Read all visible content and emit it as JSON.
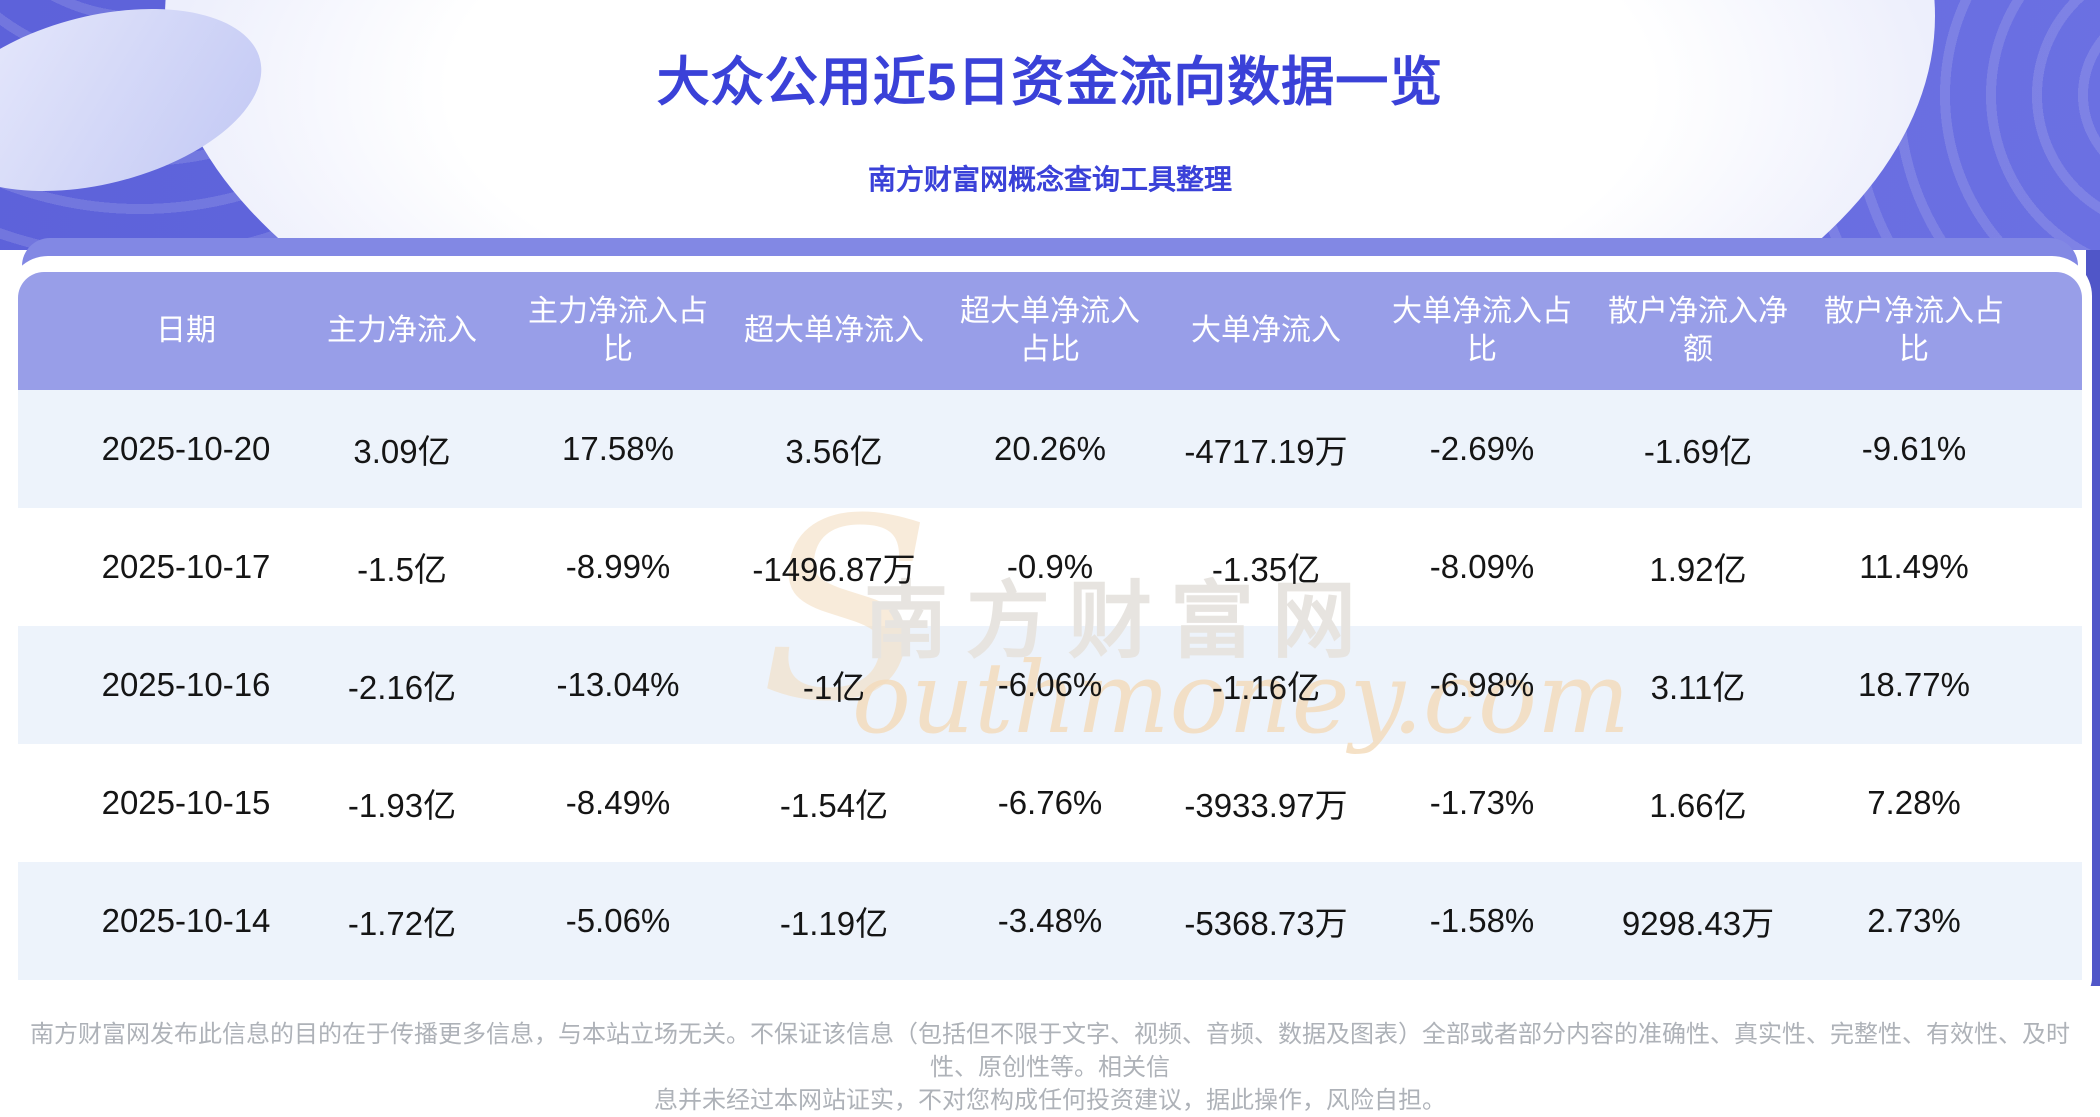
{
  "header": {
    "title": "大众公用近5日资金流向数据一览",
    "subtitle": "南方财富网概念查询工具整理"
  },
  "table": {
    "columns": [
      "日期",
      "主力净流入",
      "主力净流入占比",
      "超大单净流入",
      "超大单净流入占比",
      "大单净流入",
      "大单净流入占比",
      "散户净流入净额",
      "散户净流入占比"
    ],
    "rows": [
      [
        "2025-10-20",
        "3.09亿",
        "17.58%",
        "3.56亿",
        "20.26%",
        "-4717.19万",
        "-2.69%",
        "-1.69亿",
        "-9.61%"
      ],
      [
        "2025-10-17",
        "-1.5亿",
        "-8.99%",
        "-1496.87万",
        "-0.9%",
        "-1.35亿",
        "-8.09%",
        "1.92亿",
        "11.49%"
      ],
      [
        "2025-10-16",
        "-2.16亿",
        "-13.04%",
        "-1亿",
        "-6.06%",
        "-1.16亿",
        "-6.98%",
        "3.11亿",
        "18.77%"
      ],
      [
        "2025-10-15",
        "-1.93亿",
        "-8.49%",
        "-1.54亿",
        "-6.76%",
        "-3933.97万",
        "-1.73%",
        "1.66亿",
        "7.28%"
      ],
      [
        "2025-10-14",
        "-1.72亿",
        "-5.06%",
        "-1.19亿",
        "-3.48%",
        "-5368.73万",
        "-1.58%",
        "9298.43万",
        "2.73%"
      ]
    ]
  },
  "chart_data": {
    "type": "table",
    "title": "大众公用近5日资金流向数据一览",
    "subtitle": "南方财富网概念查询工具整理",
    "columns": [
      "日期",
      "主力净流入",
      "主力净流入占比",
      "超大单净流入",
      "超大单净流入占比",
      "大单净流入",
      "大单净流入占比",
      "散户净流入净额",
      "散户净流入占比"
    ],
    "rows": [
      [
        "2025-10-20",
        "3.09亿",
        "17.58%",
        "3.56亿",
        "20.26%",
        "-4717.19万",
        "-2.69%",
        "-1.69亿",
        "-9.61%"
      ],
      [
        "2025-10-17",
        "-1.5亿",
        "-8.99%",
        "-1496.87万",
        "-0.9%",
        "-1.35亿",
        "-8.09%",
        "1.92亿",
        "11.49%"
      ],
      [
        "2025-10-16",
        "-2.16亿",
        "-13.04%",
        "-1亿",
        "-6.06%",
        "-1.16亿",
        "-6.98%",
        "3.11亿",
        "18.77%"
      ],
      [
        "2025-10-15",
        "-1.93亿",
        "-8.49%",
        "-1.54亿",
        "-6.76%",
        "-3933.97万",
        "-1.73%",
        "1.66亿",
        "7.28%"
      ],
      [
        "2025-10-14",
        "-1.72亿",
        "-5.06%",
        "-1.19亿",
        "-3.48%",
        "-5368.73万",
        "-1.58%",
        "9298.43万",
        "2.73%"
      ]
    ]
  },
  "watermark": {
    "s": "S",
    "cn": "南方财富网",
    "en": "outhmoney.com"
  },
  "footer": {
    "line1": "南方财富网发布此信息的目的在于传播更多信息，与本站立场无关。不保证该信息（包括但不限于文字、视频、音频、数据及图表）全部或者部分内容的准确性、真实性、完整性、有效性、及时性、原创性等。相关信",
    "line2": "息并未经过本网站证实，不对您构成任何投资建议，据此操作，风险自担。"
  },
  "colors": {
    "banner_purple_1": "#5d62da",
    "banner_purple_2": "#6b70e2",
    "card_back_band": "#8288e4",
    "table_header_bg": "#989ee8",
    "row_stripe_bg": "#edf3fb",
    "title_blue": "#3a41d8",
    "row_text": "#151515",
    "footer_gray": "#aeb2b8",
    "watermark_gray": "#e7e4e0",
    "watermark_tan": "#f4dcbd"
  }
}
